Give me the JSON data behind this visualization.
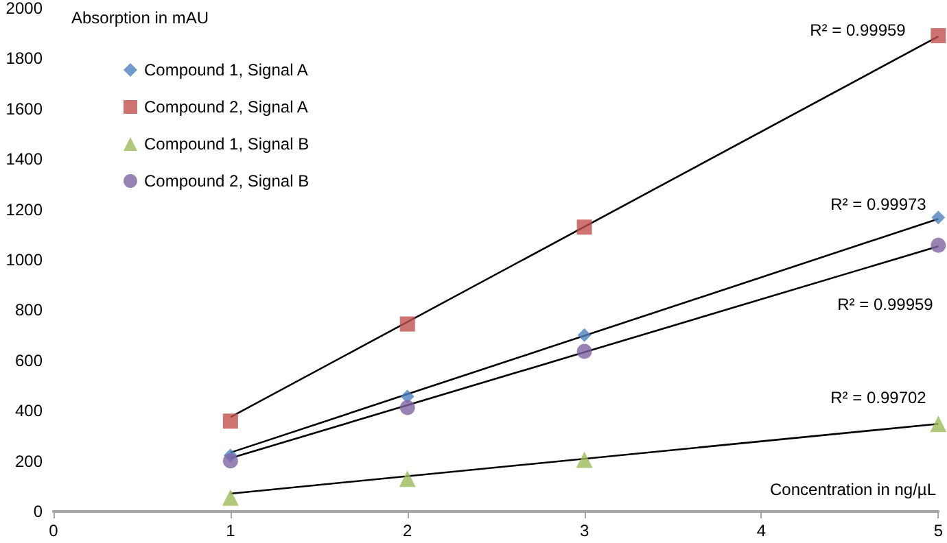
{
  "chart_data": {
    "type": "scatter",
    "xlabel": "Concentration in ng/µL",
    "ylabel": "Absorption in mAU",
    "xlim": [
      0,
      5
    ],
    "xticks": [
      0,
      1,
      2,
      3,
      4,
      5
    ],
    "ylim": [
      0,
      2000
    ],
    "yticks": [
      0,
      200,
      400,
      600,
      800,
      1000,
      1200,
      1400,
      1600,
      1800,
      2000
    ],
    "grid": false,
    "legend": "top left",
    "series": [
      {
        "name": "Compound 1, Signal A",
        "color": "#4f81bd",
        "marker": "diamond",
        "x": [
          1,
          2,
          3,
          5
        ],
        "values": [
          223,
          457,
          701,
          1168
        ]
      },
      {
        "name": "Compound 2, Signal A",
        "color": "#c0504d",
        "marker": "square",
        "x": [
          1,
          2,
          3,
          5
        ],
        "values": [
          359,
          745,
          1130,
          1891
        ]
      },
      {
        "name": "Compound 1, Signal B",
        "color": "#9bbb59",
        "marker": "triangle",
        "x": [
          1,
          2,
          3,
          5
        ],
        "values": [
          55,
          130,
          206,
          348
        ]
      },
      {
        "name": "Compound 2, Signal B",
        "color": "#8064a2",
        "marker": "circle",
        "x": [
          1,
          2,
          3,
          5
        ],
        "values": [
          201,
          413,
          636,
          1058
        ]
      },
      {
        "type": "line",
        "color": "#000000",
        "marker": "none",
        "x": [
          1,
          5
        ],
        "values": [
          375,
          1888
        ]
      },
      {
        "type": "line",
        "color": "#000000",
        "marker": "none",
        "x": [
          1,
          5
        ],
        "values": [
          234,
          1163
        ]
      },
      {
        "type": "line",
        "color": "#000000",
        "marker": "none",
        "x": [
          1,
          5
        ],
        "values": [
          212,
          1054
        ]
      },
      {
        "type": "line",
        "color": "#000000",
        "marker": "none",
        "x": [
          1,
          5
        ],
        "values": [
          71,
          348
        ]
      }
    ],
    "annotations": [
      "R² = 0.99959",
      "R² = 0.99973",
      "R² = 0.99959",
      "R² = 0.99702"
    ]
  }
}
